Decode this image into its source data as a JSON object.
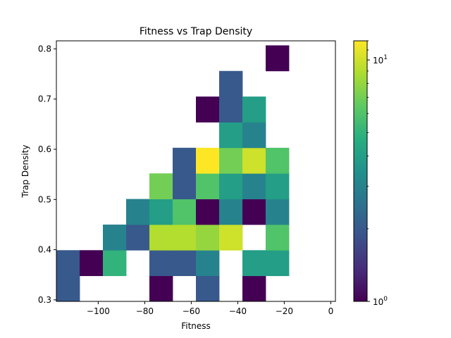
{
  "chart_data": {
    "type": "heatmap",
    "title": "Fitness vs Trap Density",
    "xlabel": "Fitness",
    "ylabel": "Trap Density",
    "x_bin_edges": [
      -118,
      -108,
      -98,
      -88,
      -78,
      -68,
      -58,
      -48,
      -38,
      -28,
      -18,
      -8,
      2
    ],
    "y_bin_edges": [
      0.297,
      0.348,
      0.399,
      0.45,
      0.501,
      0.552,
      0.603,
      0.654,
      0.705,
      0.756,
      0.807
    ],
    "xlim": [
      -118,
      2
    ],
    "ylim": [
      0.297,
      0.816
    ],
    "xticks": [
      -100,
      -80,
      -60,
      -40,
      -20,
      0
    ],
    "xtick_labels": [
      "−100",
      "−80",
      "−60",
      "−40",
      "−20",
      "0"
    ],
    "yticks": [
      0.3,
      0.4,
      0.5,
      0.6,
      0.7,
      0.8
    ],
    "ytick_labels": [
      "0.3",
      "0.4",
      "0.5",
      "0.6",
      "0.7",
      "0.8"
    ],
    "color_scale": "log",
    "colormap": "viridis",
    "vmin": 1,
    "vmax": 12,
    "colorbar_ticks": [
      {
        "value": 1,
        "base": "10",
        "exp": "0"
      },
      {
        "value": 10,
        "base": "10",
        "exp": "1"
      }
    ],
    "counts_by_row_bottom_to_top": [
      [
        2,
        0,
        0,
        0,
        1,
        0,
        2,
        0,
        1,
        0,
        0,
        0
      ],
      [
        2,
        1,
        5,
        0,
        2,
        2,
        3,
        0,
        4,
        4,
        0,
        0
      ],
      [
        0,
        0,
        3,
        2,
        9,
        9,
        8,
        10,
        0,
        6,
        0,
        0
      ],
      [
        0,
        0,
        0,
        3,
        4,
        6,
        1,
        3,
        1,
        3,
        0,
        0
      ],
      [
        0,
        0,
        0,
        0,
        7,
        2,
        6,
        4,
        3,
        4,
        0,
        0
      ],
      [
        0,
        0,
        0,
        0,
        0,
        2,
        12,
        7,
        10,
        6,
        0,
        0
      ],
      [
        0,
        0,
        0,
        0,
        0,
        0,
        0,
        4,
        3,
        0,
        0,
        0
      ],
      [
        0,
        0,
        0,
        0,
        0,
        0,
        1,
        2,
        4,
        0,
        0,
        0
      ],
      [
        0,
        0,
        0,
        0,
        0,
        0,
        0,
        2,
        0,
        0,
        0,
        0
      ],
      [
        0,
        0,
        0,
        0,
        0,
        0,
        0,
        0,
        0,
        1,
        0,
        0
      ]
    ]
  }
}
